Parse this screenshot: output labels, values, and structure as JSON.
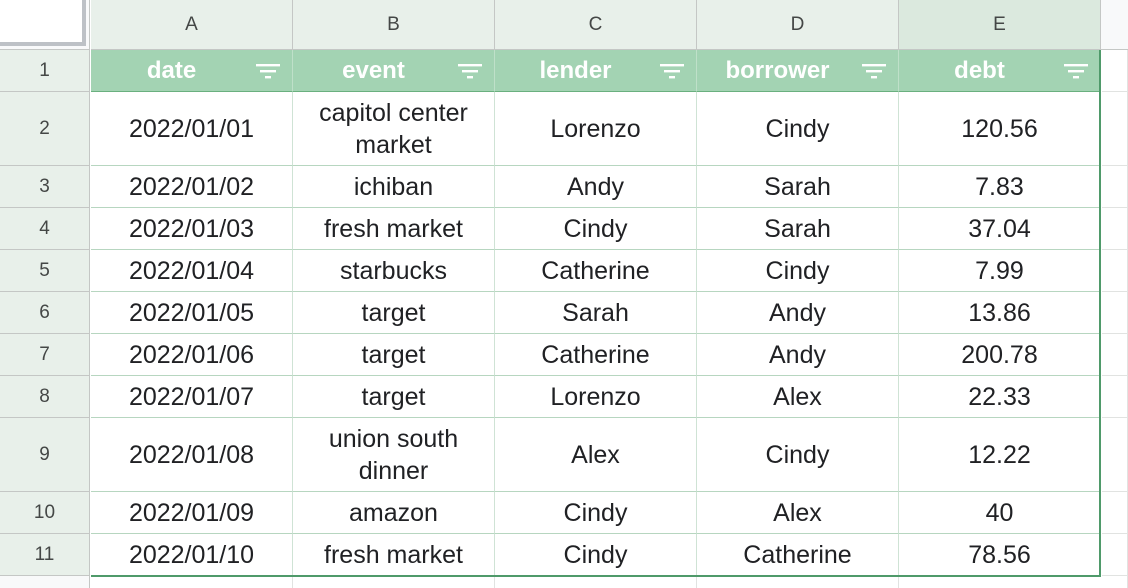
{
  "columns": [
    "A",
    "B",
    "C",
    "D",
    "E"
  ],
  "row_numbers": [
    "1",
    "2",
    "3",
    "4",
    "5",
    "6",
    "7",
    "8",
    "9",
    "10",
    "11"
  ],
  "headers": [
    "date",
    "event",
    "lender",
    "borrower",
    "debt"
  ],
  "rows": [
    [
      "2022/01/01",
      "capitol center market",
      "Lorenzo",
      "Cindy",
      "120.56"
    ],
    [
      "2022/01/02",
      "ichiban",
      "Andy",
      "Sarah",
      "7.83"
    ],
    [
      "2022/01/03",
      "fresh market",
      "Cindy",
      "Sarah",
      "37.04"
    ],
    [
      "2022/01/04",
      "starbucks",
      "Catherine",
      "Cindy",
      "7.99"
    ],
    [
      "2022/01/05",
      "target",
      "Sarah",
      "Andy",
      "13.86"
    ],
    [
      "2022/01/06",
      "target",
      "Catherine",
      "Andy",
      "200.78"
    ],
    [
      "2022/01/07",
      "target",
      "Lorenzo",
      "Alex",
      "22.33"
    ],
    [
      "2022/01/08",
      "union south dinner",
      "Alex",
      "Cindy",
      "12.22"
    ],
    [
      "2022/01/09",
      "amazon",
      "Cindy",
      "Alex",
      "40"
    ],
    [
      "2022/01/10",
      "fresh market",
      "Cindy",
      "Catherine",
      "78.56"
    ]
  ],
  "colors": {
    "header_fill": "#a3d3b3",
    "header_text": "#ffffff",
    "band_border": "#4f9a6a",
    "heading_fill": "#e8f0ea"
  },
  "icons": {
    "filter": "filter-icon"
  }
}
